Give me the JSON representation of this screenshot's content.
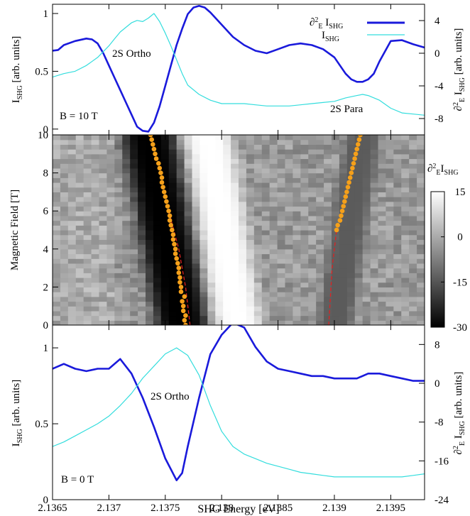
{
  "chart_data": [
    {
      "type": "line",
      "panel": "top",
      "annotation": "B = 10 T",
      "label_ortho": "2S Ortho",
      "label_para": "2S Para",
      "ylabel_left": "I_SHG [arb. units]",
      "ylabel_right": "∂²_E I_SHG [arb. units]",
      "xlim": [
        2.1365,
        2.1398
      ],
      "ylim_left": [
        -0.05,
        1.08
      ],
      "ylim_right": [
        -10,
        6
      ],
      "yticks_left": [
        "0",
        "0.5",
        "1"
      ],
      "yticks_right": [
        "-8",
        "-4",
        "0",
        "4"
      ],
      "yticks_left_values": [
        0,
        0.5,
        1
      ],
      "yticks_right_values": [
        -8,
        -4,
        0,
        4
      ],
      "legend_position": "top-right",
      "legend": [
        "∂²_E I_SHG",
        "I_SHG"
      ],
      "series": [
        {
          "name": "∂²_E I_SHG",
          "axis": "right",
          "color": "#1a1adb",
          "x": [
            2.1365,
            2.13655,
            2.1366,
            2.1367,
            2.1368,
            2.13685,
            2.1369,
            2.13695,
            2.137,
            2.13705,
            2.1371,
            2.13715,
            2.1372,
            2.13725,
            2.1373,
            2.13735,
            2.1374,
            2.13745,
            2.1375,
            2.13755,
            2.1376,
            2.13765,
            2.1377,
            2.13775,
            2.1378,
            2.13785,
            2.1379,
            2.138,
            2.1381,
            2.1382,
            2.1383,
            2.1384,
            2.1385,
            2.1386,
            2.1387,
            2.1388,
            2.1389,
            2.139,
            2.13905,
            2.1391,
            2.13915,
            2.1392,
            2.13925,
            2.1393,
            2.13935,
            2.1394,
            2.1395,
            2.1396,
            2.1397,
            2.1398
          ],
          "values": [
            0.3,
            0.4,
            1.0,
            1.5,
            1.8,
            1.7,
            1.2,
            0.0,
            -1.5,
            -3.0,
            -4.5,
            -6.0,
            -7.5,
            -9.0,
            -9.5,
            -9.6,
            -8.5,
            -6.5,
            -4.0,
            -1.5,
            1.0,
            3.0,
            4.8,
            5.6,
            5.8,
            5.6,
            5.0,
            3.5,
            2.0,
            1.0,
            0.3,
            0.0,
            0.5,
            1.0,
            1.2,
            1.0,
            0.5,
            -0.5,
            -1.5,
            -2.5,
            -3.2,
            -3.5,
            -3.5,
            -3.2,
            -2.5,
            -1.0,
            1.5,
            1.6,
            1.1,
            0.7
          ]
        },
        {
          "name": "I_SHG",
          "axis": "left",
          "color": "#33dddd",
          "x": [
            2.1365,
            2.1366,
            2.1367,
            2.1368,
            2.1369,
            2.137,
            2.13705,
            2.1371,
            2.13715,
            2.1372,
            2.13725,
            2.1373,
            2.13735,
            2.1374,
            2.13745,
            2.1375,
            2.13755,
            2.1376,
            2.13765,
            2.1377,
            2.1378,
            2.1379,
            2.138,
            2.1381,
            2.1382,
            2.1383,
            2.1384,
            2.1385,
            2.1386,
            2.1387,
            2.1388,
            2.1389,
            2.139,
            2.1391,
            2.1392,
            2.13925,
            2.1393,
            2.1394,
            2.1395,
            2.1396,
            2.1397,
            2.1398
          ],
          "values": [
            0.45,
            0.48,
            0.5,
            0.55,
            0.62,
            0.72,
            0.78,
            0.84,
            0.88,
            0.92,
            0.94,
            0.93,
            0.96,
            1.0,
            0.93,
            0.83,
            0.72,
            0.6,
            0.48,
            0.38,
            0.3,
            0.25,
            0.22,
            0.22,
            0.22,
            0.21,
            0.2,
            0.2,
            0.2,
            0.21,
            0.22,
            0.23,
            0.24,
            0.27,
            0.29,
            0.3,
            0.29,
            0.25,
            0.18,
            0.14,
            0.13,
            0.12
          ]
        }
      ]
    },
    {
      "type": "heatmap",
      "panel": "middle",
      "ylabel": "Magnetic Field [T]",
      "xlim": [
        2.1365,
        2.1398
      ],
      "ylim": [
        0,
        10
      ],
      "yticks": [
        "0",
        "2",
        "4",
        "6",
        "8",
        "10"
      ],
      "yticks_values": [
        0,
        2,
        4,
        6,
        8,
        10
      ],
      "colorbar_label": "∂²_E I_SHG",
      "colorbar_range": [
        -30,
        15
      ],
      "colorbar_ticks": [
        "15",
        "0",
        "-15",
        "-30"
      ],
      "colorbar_ticks_values": [
        15,
        0,
        -15,
        -30
      ],
      "features": [
        {
          "center_at_0T": 2.13765,
          "center_at_10T": 2.13735,
          "width": 0.00045,
          "value": -30
        },
        {
          "center_at_0T": 2.13815,
          "center_at_10T": 2.13788,
          "width": 0.0004,
          "value": 15
        },
        {
          "center_at_0T": 2.139,
          "center_at_10T": 2.13925,
          "width": 0.0003,
          "value": -14
        }
      ],
      "dots_series": [
        {
          "color": "#f5a01a",
          "B": [
            0,
            0.25,
            0.5,
            0.75,
            1,
            1.25,
            1.5,
            1.75,
            2,
            2.25,
            2.5,
            2.75,
            3,
            3.25,
            3.5,
            3.75,
            4,
            4.25,
            4.5,
            4.75,
            5,
            5.25,
            5.5,
            5.75,
            6,
            6.25,
            6.5,
            6.75,
            7,
            7.25,
            7.5,
            7.75,
            8,
            8.25,
            8.5,
            8.75,
            9,
            9.25,
            9.5,
            9.75,
            10
          ],
          "E": [
            2.13768,
            2.13767,
            2.13768,
            2.13766,
            2.13766,
            2.13765,
            2.13767,
            2.13764,
            2.13764,
            2.13763,
            2.13763,
            2.13762,
            2.13762,
            2.13761,
            2.1376,
            2.13759,
            2.13759,
            2.13758,
            2.13757,
            2.13757,
            2.13756,
            2.13755,
            2.13754,
            2.13754,
            2.13753,
            2.13752,
            2.13751,
            2.1375,
            2.13749,
            2.13748,
            2.13747,
            2.13747,
            2.13746,
            2.13745,
            2.13744,
            2.13742,
            2.13741,
            2.1374,
            2.13739,
            2.13738,
            2.13737
          ]
        },
        {
          "color": "#f5a01a",
          "B": [
            5,
            5.25,
            5.5,
            5.75,
            6,
            6.25,
            6.5,
            6.75,
            7,
            7.25,
            7.5,
            7.75,
            8,
            8.25,
            8.5,
            8.75,
            9,
            9.25,
            9.5,
            9.75,
            10
          ],
          "E": [
            2.13902,
            2.13903,
            2.13905,
            2.13906,
            2.13907,
            2.13908,
            2.13909,
            2.1391,
            2.13911,
            2.13912,
            2.13913,
            2.13914,
            2.13915,
            2.13916,
            2.13917,
            2.13918,
            2.13919,
            2.1392,
            2.13921,
            2.13922,
            2.13923
          ]
        }
      ],
      "dashed_lines": [
        {
          "color": "#dd2222",
          "B": [
            0,
            2,
            4,
            6
          ],
          "E": [
            2.13772,
            2.13768,
            2.13762,
            2.13753
          ]
        },
        {
          "color": "#dd2222",
          "B": [
            0,
            1,
            2,
            3,
            4,
            5
          ],
          "E": [
            2.13895,
            2.13896,
            2.13897,
            2.13898,
            2.139,
            2.13902
          ]
        }
      ]
    },
    {
      "type": "line",
      "panel": "bottom",
      "annotation": "B = 0 T",
      "label_ortho": "2S Ortho",
      "xlabel": "SHG Energy [eV]",
      "ylabel_left": "I_SHG [arb. units]",
      "ylabel_right": "∂²_E I_SHG [arb. units]",
      "xlim": [
        2.1365,
        2.1398
      ],
      "ylim_left": [
        0,
        1.15
      ],
      "ylim_right": [
        -24,
        12
      ],
      "xticks": [
        "2.1365",
        "2.137",
        "2.1375",
        "2.138",
        "2.1385",
        "2.139",
        "2.1395"
      ],
      "xticks_values": [
        2.1365,
        2.137,
        2.1375,
        2.138,
        2.1385,
        2.139,
        2.1395
      ],
      "yticks_left": [
        "0",
        "0.5",
        "1"
      ],
      "yticks_right": [
        "-24",
        "-16",
        "-8",
        "0",
        "8"
      ],
      "yticks_left_values": [
        0,
        0.5,
        1
      ],
      "yticks_right_values": [
        -24,
        -16,
        -8,
        0,
        8
      ],
      "series": [
        {
          "name": "∂²_E I_SHG",
          "axis": "right",
          "color": "#1a1adb",
          "x": [
            2.1365,
            2.1366,
            2.1367,
            2.1368,
            2.1369,
            2.137,
            2.1371,
            2.1372,
            2.1373,
            2.1374,
            2.1375,
            2.1376,
            2.13765,
            2.1377,
            2.1378,
            2.1379,
            2.138,
            2.1381,
            2.1382,
            2.1383,
            2.1384,
            2.1385,
            2.1386,
            2.1387,
            2.1388,
            2.1389,
            2.139,
            2.1391,
            2.1392,
            2.1393,
            2.1394,
            2.1395,
            2.1396,
            2.1397,
            2.1398
          ],
          "values": [
            3.0,
            4.0,
            3.0,
            2.5,
            3.0,
            3.0,
            5.0,
            2.0,
            -3.0,
            -9.0,
            -15.5,
            -20.0,
            -18.5,
            -13.0,
            -3.0,
            6.0,
            10.0,
            12.5,
            11.5,
            7.5,
            4.5,
            3.0,
            2.5,
            2.0,
            1.5,
            1.5,
            1.0,
            1.0,
            1.0,
            2.0,
            2.0,
            1.5,
            1.0,
            0.5,
            0.5
          ]
        },
        {
          "name": "I_SHG",
          "axis": "left",
          "color": "#33dddd",
          "x": [
            2.1365,
            2.1366,
            2.1367,
            2.1368,
            2.1369,
            2.137,
            2.1371,
            2.1372,
            2.1373,
            2.1374,
            2.1375,
            2.1376,
            2.1377,
            2.1378,
            2.1379,
            2.138,
            2.1381,
            2.1382,
            2.1383,
            2.1384,
            2.1385,
            2.1386,
            2.1387,
            2.1388,
            2.1389,
            2.139,
            2.1391,
            2.1392,
            2.1393,
            2.1394,
            2.1395,
            2.1396,
            2.1397,
            2.1398
          ],
          "values": [
            0.35,
            0.38,
            0.42,
            0.46,
            0.5,
            0.55,
            0.62,
            0.7,
            0.8,
            0.88,
            0.96,
            1.0,
            0.95,
            0.82,
            0.62,
            0.45,
            0.35,
            0.3,
            0.27,
            0.24,
            0.22,
            0.2,
            0.18,
            0.17,
            0.16,
            0.15,
            0.15,
            0.15,
            0.15,
            0.15,
            0.15,
            0.15,
            0.16,
            0.17
          ]
        }
      ]
    }
  ]
}
